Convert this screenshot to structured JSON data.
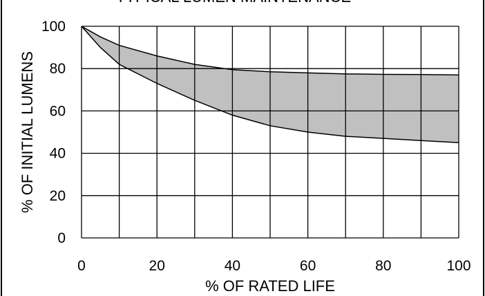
{
  "chart_data": {
    "type": "area",
    "title": "TYPICAL LUMEN MAINTENANCE",
    "xlabel": "% OF RATED LIFE",
    "ylabel": "% OF INITIAL LUMENS",
    "xlim": [
      0,
      100
    ],
    "ylim": [
      0,
      100
    ],
    "x_ticks": [
      0,
      20,
      40,
      60,
      80,
      100
    ],
    "y_ticks": [
      0,
      20,
      40,
      60,
      80,
      100
    ],
    "grid": true,
    "band_color": "#c0c0c0",
    "line_color": "#000000",
    "x": [
      0,
      5,
      10,
      20,
      30,
      40,
      50,
      60,
      70,
      80,
      90,
      100
    ],
    "series": [
      {
        "values": [
          100,
          95,
          91,
          86,
          82,
          79.5,
          78.5,
          78,
          77.5,
          77.3,
          77.2,
          77
        ]
      },
      {
        "values": [
          100,
          90,
          82,
          73,
          65,
          58,
          53,
          50,
          48,
          47,
          46,
          45
        ]
      }
    ]
  }
}
